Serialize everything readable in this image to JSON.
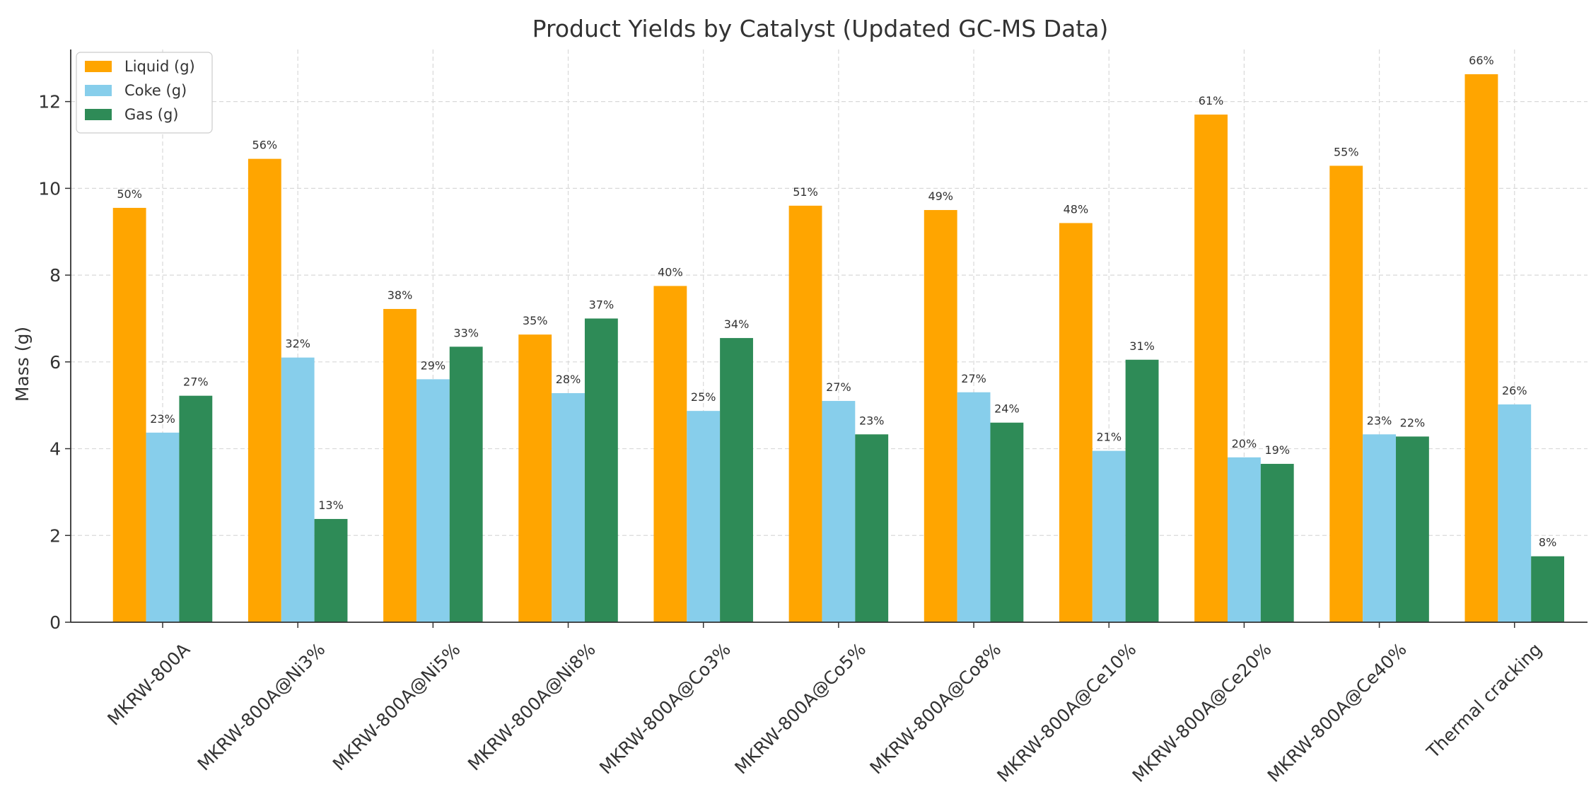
{
  "chart_data": {
    "type": "bar",
    "title": "Product Yields by Catalyst (Updated GC-MS Data)",
    "xlabel": "",
    "ylabel": "Mass (g)",
    "ylim": [
      0,
      13.2
    ],
    "yticks": [
      0,
      2,
      4,
      6,
      8,
      10,
      12
    ],
    "grid": true,
    "legend_position": "top-left",
    "categories": [
      "MKRW-800A",
      "MKRW-800A@Ni3%",
      "MKRW-800A@Ni5%",
      "MKRW-800A@Ni8%",
      "MKRW-800A@Co3%",
      "MKRW-800A@Co5%",
      "MKRW-800A@Co8%",
      "MKRW-800A@Ce10%",
      "MKRW-800A@Ce20%",
      "MKRW-800A@Ce40%",
      "Thermal cracking"
    ],
    "series": [
      {
        "name": "Liquid (g)",
        "color": "#FFA500",
        "values": [
          9.55,
          10.68,
          7.22,
          6.63,
          7.75,
          9.6,
          9.5,
          9.2,
          11.7,
          10.52,
          12.63
        ],
        "labels": [
          "50%",
          "56%",
          "38%",
          "35%",
          "40%",
          "51%",
          "49%",
          "48%",
          "61%",
          "55%",
          "66%"
        ]
      },
      {
        "name": "Coke (g)",
        "color": "#87CEEB",
        "values": [
          4.37,
          6.1,
          5.6,
          5.28,
          4.87,
          5.1,
          5.3,
          3.95,
          3.8,
          4.33,
          5.02
        ],
        "labels": [
          "23%",
          "32%",
          "29%",
          "28%",
          "25%",
          "27%",
          "27%",
          "21%",
          "20%",
          "23%",
          "26%"
        ]
      },
      {
        "name": "Gas (g)",
        "color": "#2E8B57",
        "values": [
          5.22,
          2.38,
          6.35,
          7.0,
          6.55,
          4.33,
          4.6,
          6.05,
          3.65,
          4.28,
          1.52
        ],
        "labels": [
          "27%",
          "13%",
          "33%",
          "37%",
          "34%",
          "23%",
          "24%",
          "31%",
          "19%",
          "22%",
          "8%"
        ]
      }
    ]
  }
}
